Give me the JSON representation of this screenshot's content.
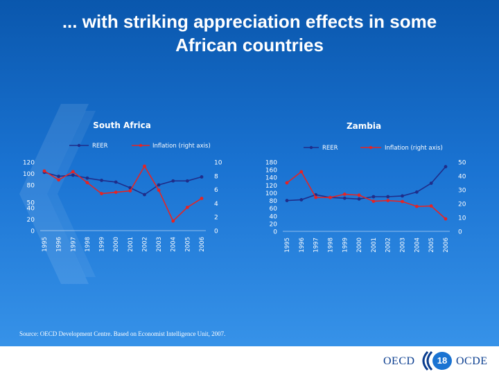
{
  "slide": {
    "title_line1": "... with striking appreciation effects in some",
    "title_line2": "African countries",
    "source": "Source: OECD Development Centre. Based on Economist Intelligence Unit, 2007.",
    "footer": {
      "left_text": "OECD",
      "right_text": "OCDE",
      "page_number": "18"
    }
  },
  "colors": {
    "reer": "#1f2d8a",
    "inflation": "#e52424",
    "axis_text": "#ffffff",
    "title_text": "#ffffff",
    "footer_text": "#0a3d8f"
  },
  "chart_data": [
    {
      "type": "line",
      "title": "South Africa",
      "legend_position": "top",
      "x": [
        "1995",
        "1996",
        "1997",
        "1998",
        "1999",
        "2000",
        "2001",
        "2002",
        "2003",
        "2004",
        "2005",
        "2006"
      ],
      "series": [
        {
          "name": "REER",
          "axis": "left",
          "values": [
            102,
            95,
            97,
            92,
            88,
            85,
            75,
            63,
            80,
            87,
            87,
            94
          ]
        },
        {
          "name": "Inflation (right axis)",
          "axis": "right",
          "values": [
            8.7,
            7.4,
            8.6,
            7.0,
            5.4,
            5.6,
            5.8,
            9.4,
            5.9,
            1.4,
            3.4,
            4.7
          ]
        }
      ],
      "y_left": {
        "ticks": [
          "0",
          "20",
          "40",
          "50",
          "80",
          "100",
          "120"
        ],
        "lim": [
          0,
          120
        ]
      },
      "y_right": {
        "ticks": [
          "0",
          "2",
          "4",
          "6",
          "8",
          "10"
        ],
        "lim": [
          0,
          10
        ]
      },
      "grid": false
    },
    {
      "type": "line",
      "title": "Zambia",
      "legend_position": "top",
      "x": [
        "1995",
        "1996",
        "1997",
        "1998",
        "1999",
        "2000",
        "2001",
        "2002",
        "2003",
        "2004",
        "2005",
        "2006"
      ],
      "series": [
        {
          "name": "REER",
          "axis": "left",
          "values": [
            80,
            82,
            95,
            88,
            86,
            84,
            90,
            90,
            92,
            102,
            125,
            168
          ]
        },
        {
          "name": "Inflation (right axis)",
          "axis": "right",
          "values": [
            35,
            43,
            24.5,
            24.4,
            26.8,
            26.1,
            21.7,
            22.2,
            21.5,
            18.0,
            18.3,
            9.0
          ]
        }
      ],
      "y_left": {
        "ticks": [
          "0",
          "20",
          "40",
          "60",
          "80",
          "100",
          "120",
          "140",
          "160",
          "180"
        ],
        "lim": [
          0,
          180
        ]
      },
      "y_right": {
        "ticks": [
          "0",
          "10",
          "20",
          "30",
          "40",
          "50"
        ],
        "lim": [
          0,
          50
        ]
      },
      "grid": false
    }
  ]
}
